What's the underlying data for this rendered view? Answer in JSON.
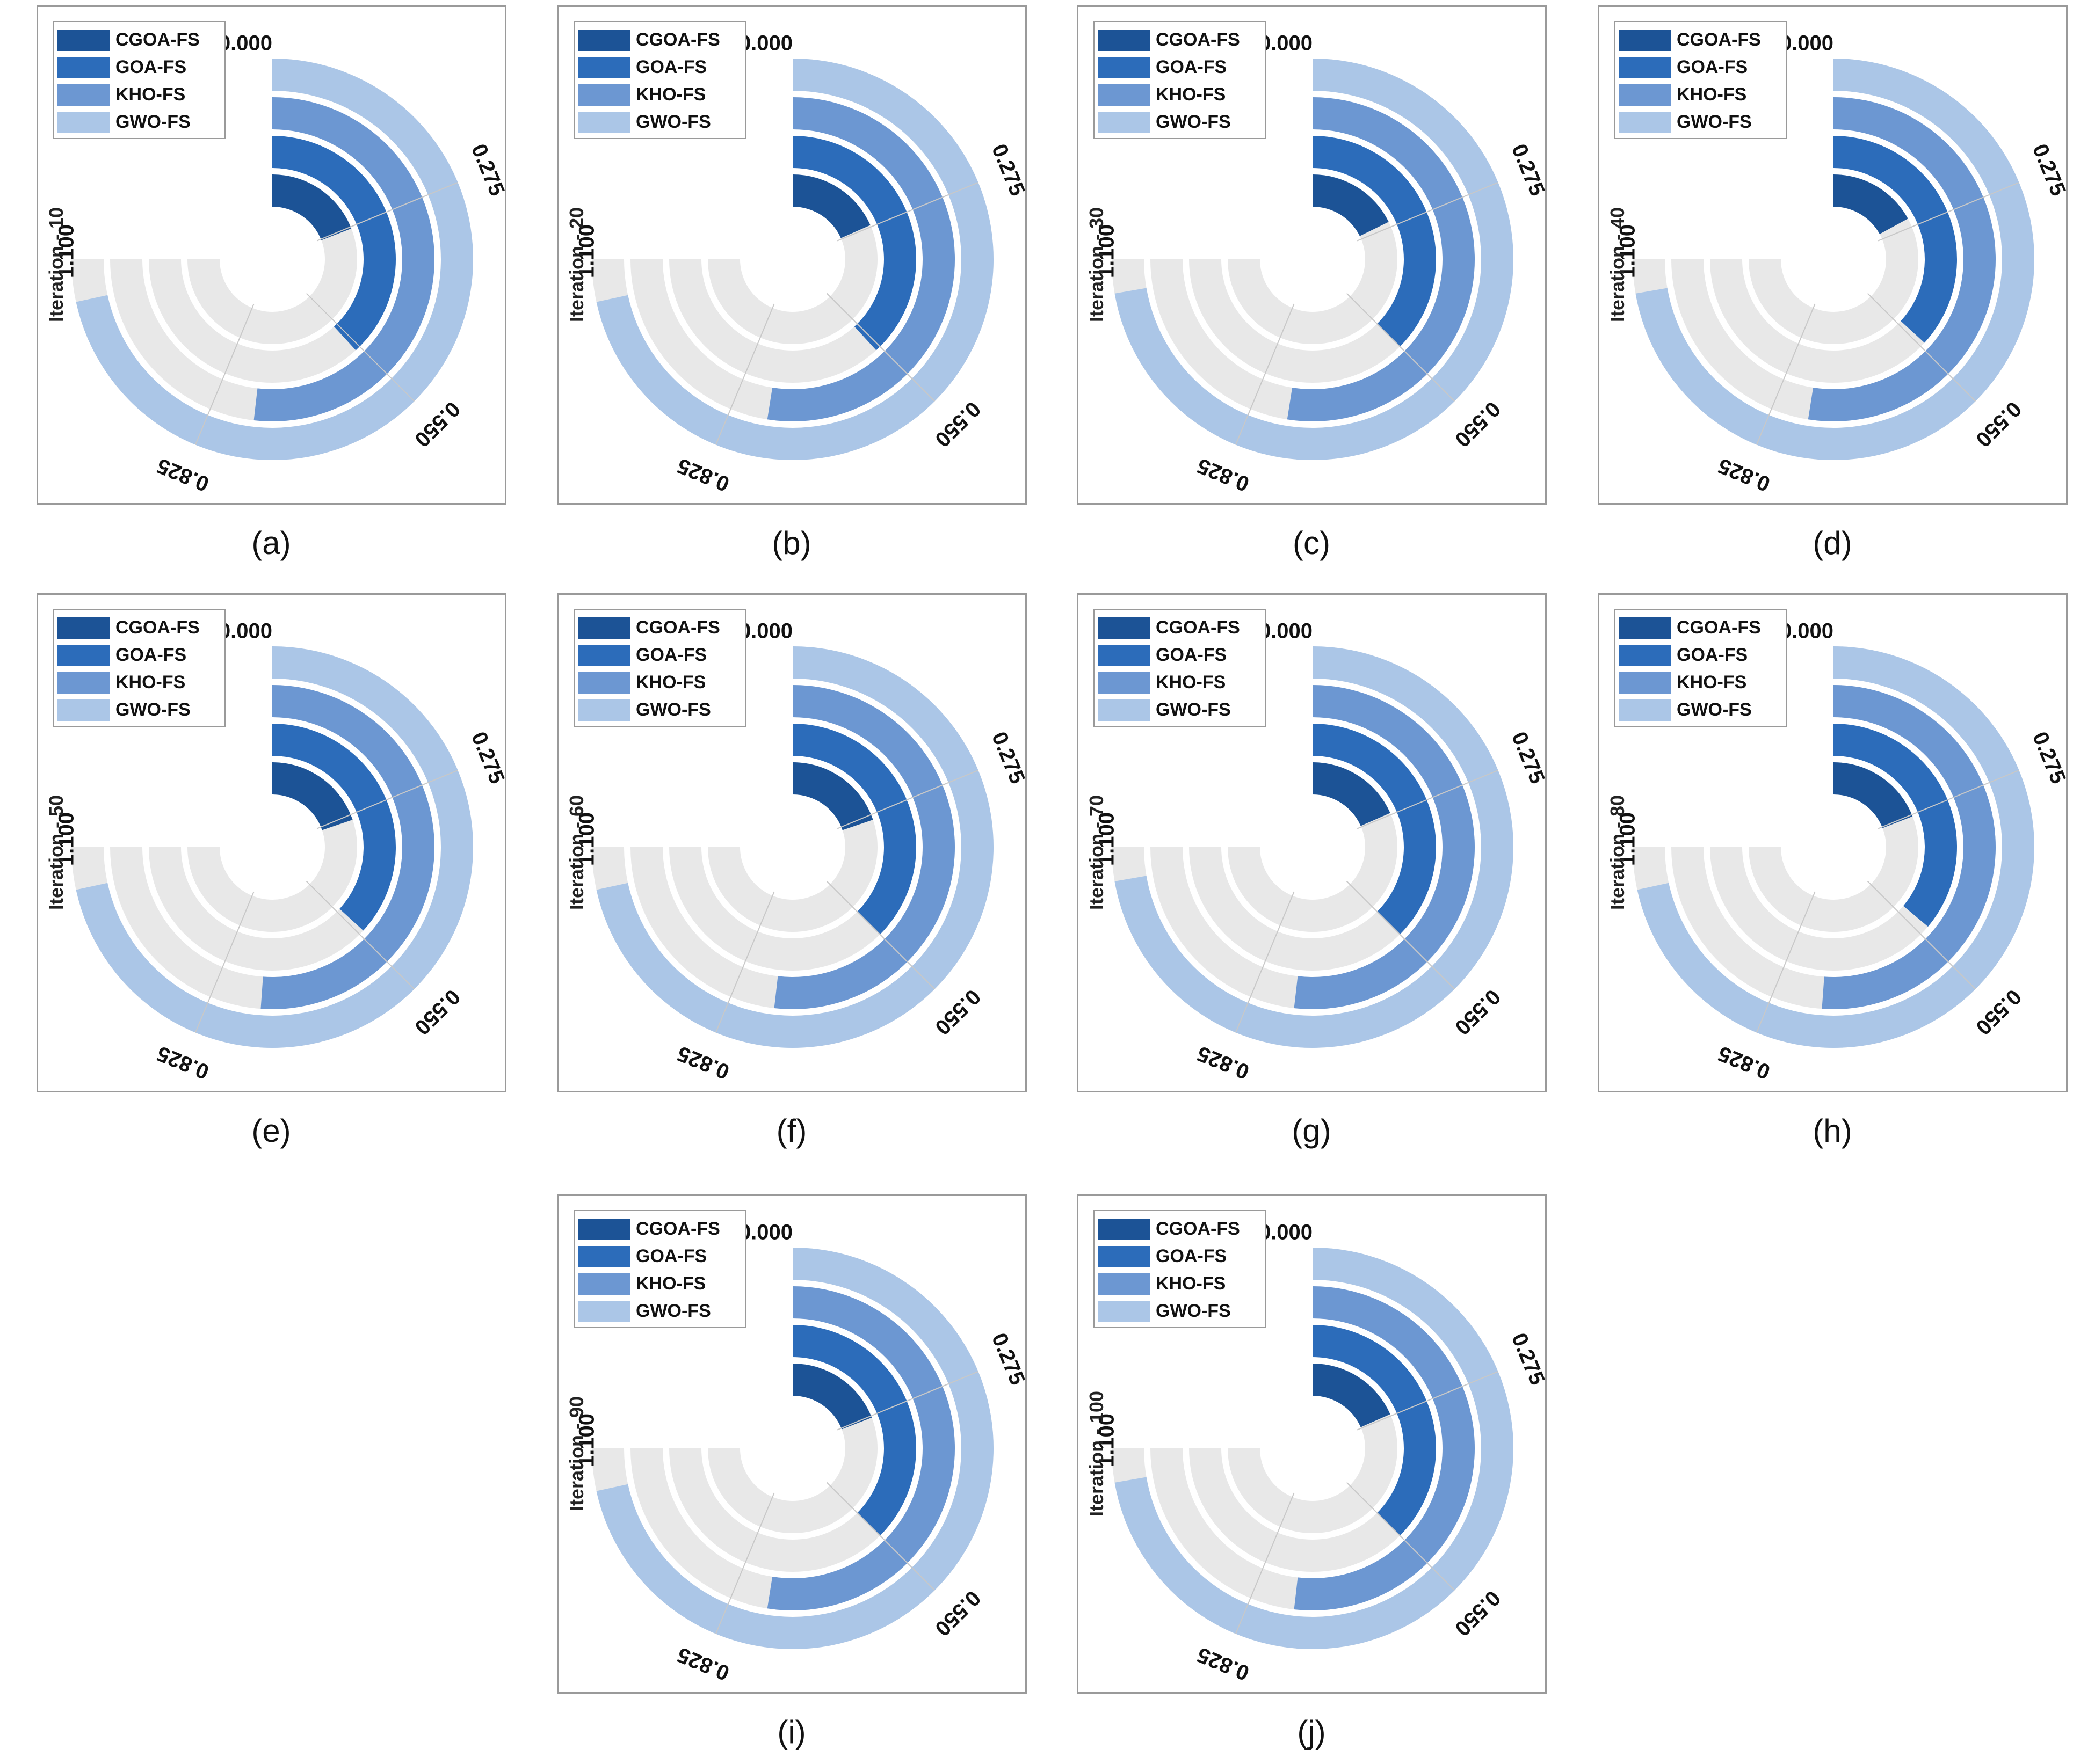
{
  "legend": [
    "CGOA-FS",
    "GOA-FS",
    "KHO-FS",
    "GWO-FS"
  ],
  "colors": {
    "CGOA-FS": "#1c5396",
    "GOA-FS": "#2c6cba",
    "KHO-FS": "#6c97d2",
    "GWO-FS": "#abc6e7",
    "track": "#e8e8e8"
  },
  "chart_data": [
    {
      "type": "radial-bar",
      "caption": "(a)",
      "ylabel": "Iteration - 10",
      "ticks": [
        "0.000",
        "0.275",
        "0.550",
        "0.825",
        "1.100"
      ],
      "range": [
        0,
        1.1
      ],
      "series": [
        {
          "name": "CGOA-FS",
          "value": 0.28
        },
        {
          "name": "GOA-FS",
          "value": 0.56
        },
        {
          "name": "KHO-FS",
          "value": 0.76
        },
        {
          "name": "GWO-FS",
          "value": 1.05
        }
      ]
    },
    {
      "type": "radial-bar",
      "caption": "(b)",
      "ylabel": "Iteration - 20",
      "ticks": [
        "0.000",
        "0.275",
        "0.550",
        "0.825",
        "1.100"
      ],
      "range": [
        0,
        1.1
      ],
      "series": [
        {
          "name": "CGOA-FS",
          "value": 0.27
        },
        {
          "name": "GOA-FS",
          "value": 0.56
        },
        {
          "name": "KHO-FS",
          "value": 0.77
        },
        {
          "name": "GWO-FS",
          "value": 1.05
        }
      ]
    },
    {
      "type": "radial-bar",
      "caption": "(c)",
      "ylabel": "Iteration - 30",
      "ticks": [
        "0.000",
        "0.275",
        "0.550",
        "0.825",
        "1.100"
      ],
      "range": [
        0,
        1.1
      ],
      "series": [
        {
          "name": "CGOA-FS",
          "value": 0.26
        },
        {
          "name": "GOA-FS",
          "value": 0.55
        },
        {
          "name": "KHO-FS",
          "value": 0.77
        },
        {
          "name": "GWO-FS",
          "value": 1.06
        }
      ]
    },
    {
      "type": "radial-bar",
      "caption": "(d)",
      "ylabel": "Iteration - 40",
      "ticks": [
        "0.000",
        "0.275",
        "0.550",
        "0.825",
        "1.100"
      ],
      "range": [
        0,
        1.1
      ],
      "series": [
        {
          "name": "CGOA-FS",
          "value": 0.25
        },
        {
          "name": "GOA-FS",
          "value": 0.54
        },
        {
          "name": "KHO-FS",
          "value": 0.77
        },
        {
          "name": "GWO-FS",
          "value": 1.06
        }
      ]
    },
    {
      "type": "radial-bar",
      "caption": "(e)",
      "ylabel": "Iteration - 50",
      "ticks": [
        "0.000",
        "0.275",
        "0.550",
        "0.825",
        "1.100"
      ],
      "range": [
        0,
        1.1
      ],
      "series": [
        {
          "name": "CGOA-FS",
          "value": 0.29
        },
        {
          "name": "GOA-FS",
          "value": 0.54
        },
        {
          "name": "KHO-FS",
          "value": 0.75
        },
        {
          "name": "GWO-FS",
          "value": 1.05
        }
      ]
    },
    {
      "type": "radial-bar",
      "caption": "(f)",
      "ylabel": "Iteration - 60",
      "ticks": [
        "0.000",
        "0.275",
        "0.550",
        "0.825",
        "1.100"
      ],
      "range": [
        0,
        1.1
      ],
      "series": [
        {
          "name": "CGOA-FS",
          "value": 0.29
        },
        {
          "name": "GOA-FS",
          "value": 0.55
        },
        {
          "name": "KHO-FS",
          "value": 0.76
        },
        {
          "name": "GWO-FS",
          "value": 1.05
        }
      ]
    },
    {
      "type": "radial-bar",
      "caption": "(g)",
      "ylabel": "Iteration - 70",
      "ticks": [
        "0.000",
        "0.275",
        "0.550",
        "0.825",
        "1.100"
      ],
      "range": [
        0,
        1.1
      ],
      "series": [
        {
          "name": "CGOA-FS",
          "value": 0.27
        },
        {
          "name": "GOA-FS",
          "value": 0.55
        },
        {
          "name": "KHO-FS",
          "value": 0.76
        },
        {
          "name": "GWO-FS",
          "value": 1.06
        }
      ]
    },
    {
      "type": "radial-bar",
      "caption": "(h)",
      "ylabel": "Iteration - 80",
      "ticks": [
        "0.000",
        "0.275",
        "0.550",
        "0.825",
        "1.100"
      ],
      "range": [
        0,
        1.1
      ],
      "series": [
        {
          "name": "CGOA-FS",
          "value": 0.28
        },
        {
          "name": "GOA-FS",
          "value": 0.53
        },
        {
          "name": "KHO-FS",
          "value": 0.75
        },
        {
          "name": "GWO-FS",
          "value": 1.05
        }
      ]
    },
    {
      "type": "radial-bar",
      "caption": "(i)",
      "ylabel": "Iteration - 90",
      "ticks": [
        "0.000",
        "0.275",
        "0.550",
        "0.825",
        "1.100"
      ],
      "range": [
        0,
        1.1
      ],
      "series": [
        {
          "name": "CGOA-FS",
          "value": 0.28
        },
        {
          "name": "GOA-FS",
          "value": 0.55
        },
        {
          "name": "KHO-FS",
          "value": 0.77
        },
        {
          "name": "GWO-FS",
          "value": 1.05
        }
      ]
    },
    {
      "type": "radial-bar",
      "caption": "(j)",
      "ylabel": "Iteration - 100",
      "ticks": [
        "0.000",
        "0.275",
        "0.550",
        "0.825",
        "1.100"
      ],
      "range": [
        0,
        1.1
      ],
      "series": [
        {
          "name": "CGOA-FS",
          "value": 0.27
        },
        {
          "name": "GOA-FS",
          "value": 0.55
        },
        {
          "name": "KHO-FS",
          "value": 0.76
        },
        {
          "name": "GWO-FS",
          "value": 1.06
        }
      ]
    }
  ]
}
